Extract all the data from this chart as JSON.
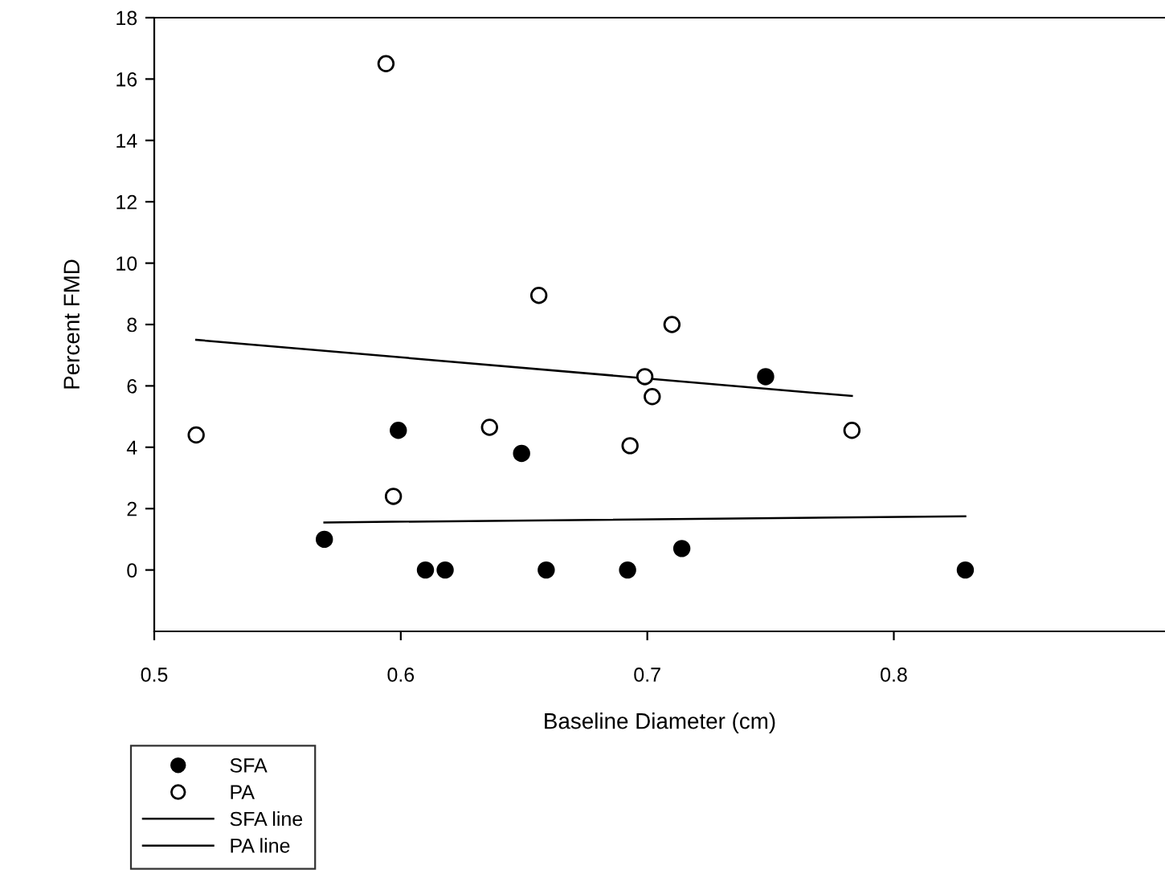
{
  "chart_data": {
    "type": "scatter",
    "xlabel": "Baseline Diameter (cm)",
    "ylabel": "Percent FMD",
    "xlim": [
      0.5,
      0.91
    ],
    "xticks": [
      0.5,
      0.6,
      0.7,
      0.8
    ],
    "ylim": [
      -2,
      18
    ],
    "yticks": [
      0,
      2,
      4,
      6,
      8,
      10,
      12,
      14,
      16,
      18
    ],
    "grid": false,
    "legend": "bottom left",
    "series": [
      {
        "name": "SFA",
        "marker": "circle",
        "color": "#000000",
        "x": [
          0.569,
          0.599,
          0.61,
          0.618,
          0.649,
          0.659,
          0.692,
          0.714,
          0.748,
          0.829
        ],
        "values": [
          1.0,
          4.55,
          0,
          0,
          3.8,
          0,
          0,
          0.7,
          6.3,
          0
        ]
      },
      {
        "name": "PA",
        "marker": "circle",
        "color": "#ffffff",
        "x": [
          0.517,
          0.594,
          0.597,
          0.636,
          0.656,
          0.693,
          0.699,
          0.702,
          0.71,
          0.783
        ],
        "values": [
          4.4,
          16.5,
          2.4,
          4.65,
          8.95,
          4.05,
          6.3,
          5.65,
          8.0,
          4.55
        ]
      },
      {
        "name": "SFA line",
        "type": "line",
        "color": "#000000",
        "line_style": "solid",
        "x": [
          0.569,
          0.829
        ],
        "values": [
          1.55,
          1.75
        ]
      },
      {
        "name": "PA line",
        "type": "line",
        "color": "#000000",
        "line_style": "solid",
        "x": [
          0.517,
          0.783
        ],
        "values": [
          7.5,
          5.67
        ]
      }
    ]
  }
}
